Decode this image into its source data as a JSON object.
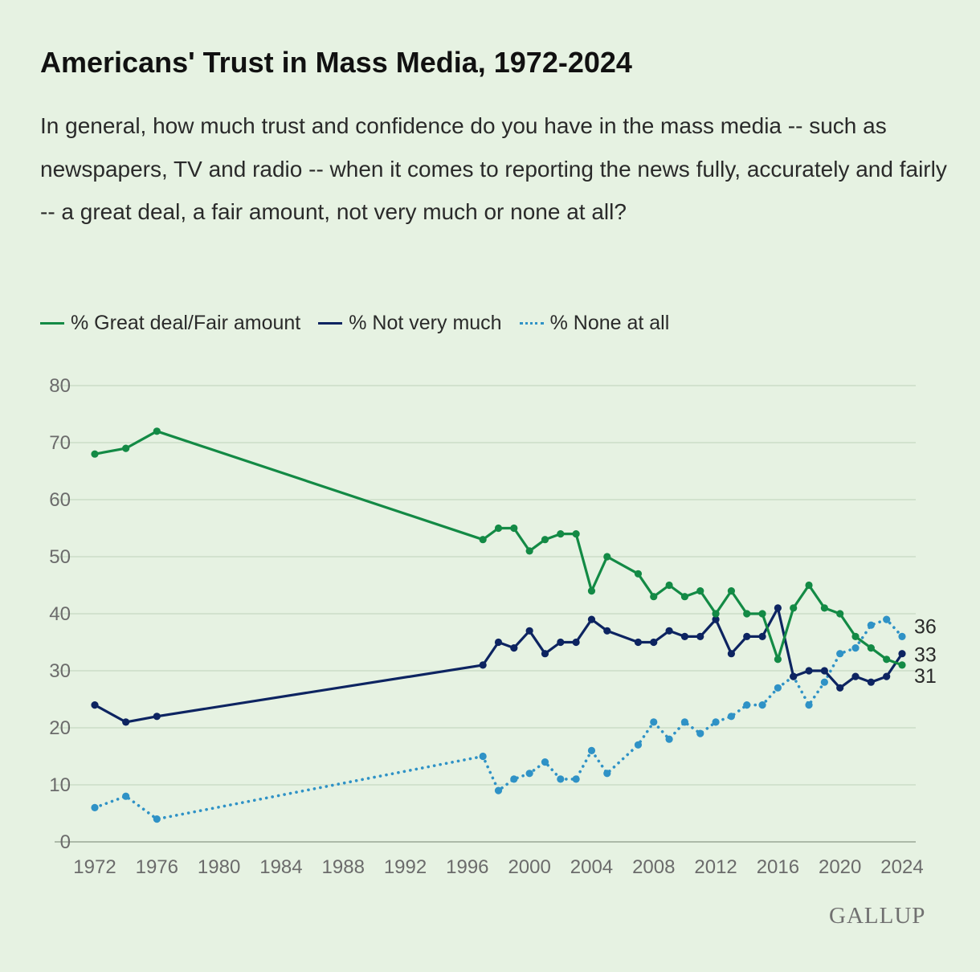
{
  "header": {
    "title": "Americans' Trust in Mass Media, 1972-2024",
    "subtitle": "In general, how much trust and confidence do you have in the mass media -- such as newspapers, TV and radio -- when it comes to reporting the news fully, accurately and fairly -- a great deal, a fair amount, not very much or none at all?"
  },
  "brand": {
    "label": "GALLUP"
  },
  "colors": {
    "background": "#e6f2e2",
    "grid": "#c7d9c2",
    "axis_text": "#6b6b6b"
  },
  "chart_data": {
    "type": "line",
    "title": "Americans' Trust in Mass Media, 1972-2024",
    "xlabel": "",
    "ylabel": "",
    "xlim": [
      1972,
      2024
    ],
    "ylim": [
      0,
      80
    ],
    "x_ticks": [
      "1972",
      "1976",
      "1980",
      "1984",
      "1988",
      "1992",
      "1996",
      "2000",
      "2004",
      "2008",
      "2012",
      "2016",
      "2020",
      "2024"
    ],
    "y_ticks": [
      "0",
      "10",
      "20",
      "30",
      "40",
      "50",
      "60",
      "70",
      "80"
    ],
    "grid": true,
    "legend_position": "top-left",
    "series": [
      {
        "name": "% Great deal/Fair amount",
        "color": "#138a45",
        "style": "solid",
        "end_label": "31",
        "x": [
          1972,
          1974,
          1976,
          1997,
          1998,
          1999,
          2000,
          2001,
          2002,
          2003,
          2004,
          2005,
          2007,
          2008,
          2009,
          2010,
          2011,
          2012,
          2013,
          2014,
          2015,
          2016,
          2017,
          2018,
          2019,
          2020,
          2021,
          2022,
          2023,
          2024
        ],
        "y": [
          68,
          69,
          72,
          53,
          55,
          55,
          51,
          53,
          54,
          54,
          44,
          50,
          47,
          43,
          45,
          43,
          44,
          40,
          44,
          40,
          40,
          32,
          41,
          45,
          41,
          40,
          36,
          34,
          32,
          31
        ]
      },
      {
        "name": "% Not very much",
        "color": "#0d2461",
        "style": "solid",
        "end_label": "33",
        "x": [
          1972,
          1974,
          1976,
          1997,
          1998,
          1999,
          2000,
          2001,
          2002,
          2003,
          2004,
          2005,
          2007,
          2008,
          2009,
          2010,
          2011,
          2012,
          2013,
          2014,
          2015,
          2016,
          2017,
          2018,
          2019,
          2020,
          2021,
          2022,
          2023,
          2024
        ],
        "y": [
          24,
          21,
          22,
          31,
          35,
          34,
          37,
          33,
          35,
          35,
          39,
          37,
          35,
          35,
          37,
          36,
          36,
          39,
          33,
          36,
          36,
          41,
          29,
          30,
          30,
          27,
          29,
          28,
          29,
          33
        ]
      },
      {
        "name": "% None at all",
        "color": "#2f92c6",
        "style": "dotted",
        "end_label": "36",
        "x": [
          1972,
          1974,
          1976,
          1997,
          1998,
          1999,
          2000,
          2001,
          2002,
          2003,
          2004,
          2005,
          2007,
          2008,
          2009,
          2010,
          2011,
          2012,
          2013,
          2014,
          2015,
          2016,
          2017,
          2018,
          2019,
          2020,
          2021,
          2022,
          2023,
          2024
        ],
        "y": [
          6,
          8,
          4,
          15,
          9,
          11,
          12,
          14,
          11,
          11,
          16,
          12,
          17,
          21,
          18,
          21,
          19,
          21,
          22,
          24,
          24,
          27,
          29,
          24,
          28,
          33,
          34,
          38,
          39,
          36
        ]
      }
    ]
  }
}
